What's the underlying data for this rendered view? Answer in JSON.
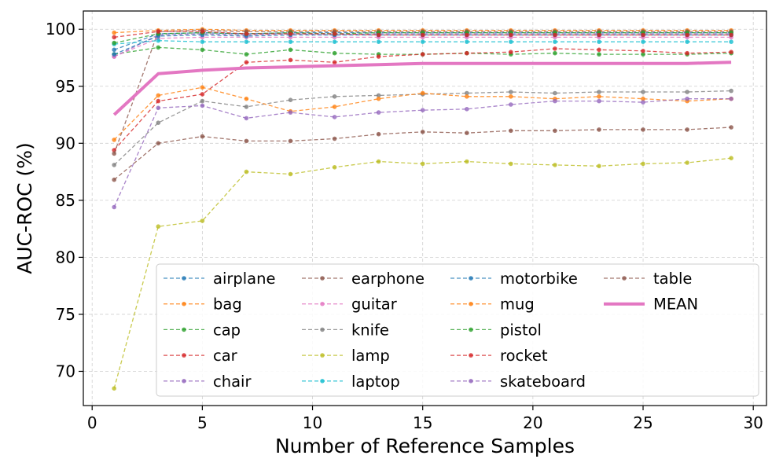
{
  "chart_data": {
    "type": "line",
    "title": "",
    "xlabel": "Number of Reference Samples",
    "ylabel": "AUC-ROC (%)",
    "xlim": [
      -0.4,
      30.6
    ],
    "ylim": [
      67,
      101.6
    ],
    "xticks": [
      0,
      5,
      10,
      15,
      20,
      25,
      30
    ],
    "yticks": [
      70,
      75,
      80,
      85,
      90,
      95,
      100
    ],
    "grid": true,
    "legend_position": "lower-right",
    "x": [
      1,
      3,
      5,
      7,
      9,
      11,
      13,
      15,
      17,
      19,
      21,
      23,
      25,
      27,
      29
    ],
    "series": [
      {
        "name": "airplane",
        "color": "#1f77b4",
        "style": "dashed",
        "values": [
          98.2,
          99.6,
          99.7,
          99.6,
          99.7,
          99.7,
          99.7,
          99.7,
          99.7,
          99.7,
          99.7,
          99.7,
          99.7,
          99.7,
          99.7
        ]
      },
      {
        "name": "bag",
        "color": "#ff7f0e",
        "style": "dashed",
        "values": [
          99.7,
          99.9,
          100.0,
          99.9,
          99.9,
          99.9,
          99.9,
          99.9,
          99.9,
          99.9,
          99.9,
          99.9,
          99.9,
          99.9,
          99.9
        ]
      },
      {
        "name": "cap",
        "color": "#2ca02c",
        "style": "dashed",
        "values": [
          97.8,
          98.4,
          98.2,
          97.8,
          98.2,
          97.9,
          97.8,
          97.8,
          97.9,
          97.8,
          97.9,
          97.8,
          97.8,
          97.8,
          97.9
        ]
      },
      {
        "name": "car",
        "color": "#d62728",
        "style": "dashed",
        "values": [
          89.4,
          93.7,
          94.3,
          97.1,
          97.3,
          97.1,
          97.6,
          97.8,
          97.9,
          98.0,
          98.3,
          98.2,
          98.1,
          97.9,
          98.0
        ]
      },
      {
        "name": "chair",
        "color": "#9467bd",
        "style": "dashed",
        "values": [
          97.6,
          99.5,
          99.6,
          99.5,
          99.6,
          99.5,
          99.6,
          99.6,
          99.6,
          99.6,
          99.6,
          99.6,
          99.6,
          99.6,
          99.6
        ]
      },
      {
        "name": "earphone",
        "color": "#8c564b",
        "style": "dashed",
        "values": [
          89.1,
          99.8,
          99.9,
          99.8,
          99.8,
          99.8,
          99.8,
          99.8,
          99.8,
          99.8,
          99.8,
          99.8,
          99.8,
          99.8,
          99.8
        ]
      },
      {
        "name": "guitar",
        "color": "#e377c2",
        "style": "dashed",
        "values": [
          97.6,
          99.2,
          99.3,
          99.3,
          99.3,
          99.3,
          99.3,
          99.3,
          99.3,
          99.3,
          99.3,
          99.3,
          99.3,
          99.3,
          99.3
        ]
      },
      {
        "name": "knife",
        "color": "#7f7f7f",
        "style": "dashed",
        "values": [
          88.1,
          91.8,
          93.7,
          93.2,
          93.8,
          94.1,
          94.2,
          94.3,
          94.4,
          94.5,
          94.4,
          94.5,
          94.5,
          94.5,
          94.6
        ]
      },
      {
        "name": "lamp",
        "color": "#bcbd22",
        "style": "dashed",
        "values": [
          68.5,
          82.7,
          83.2,
          87.5,
          87.3,
          87.9,
          88.4,
          88.2,
          88.4,
          88.2,
          88.1,
          88.0,
          88.2,
          88.3,
          88.7
        ]
      },
      {
        "name": "laptop",
        "color": "#17becf",
        "style": "dashed",
        "values": [
          98.7,
          99.0,
          98.9,
          98.9,
          98.9,
          98.9,
          98.9,
          98.9,
          98.9,
          98.9,
          98.9,
          98.9,
          98.9,
          98.9,
          98.9
        ]
      },
      {
        "name": "motorbike",
        "color": "#1f77b4",
        "style": "dashed",
        "values": [
          97.8,
          99.4,
          99.5,
          99.4,
          99.5,
          99.5,
          99.5,
          99.5,
          99.5,
          99.5,
          99.5,
          99.5,
          99.5,
          99.5,
          99.5
        ]
      },
      {
        "name": "mug",
        "color": "#ff7f0e",
        "style": "dashed",
        "values": [
          90.3,
          94.2,
          94.9,
          93.9,
          92.8,
          93.2,
          93.9,
          94.4,
          94.1,
          94.1,
          93.9,
          94.1,
          93.9,
          93.7,
          93.9
        ]
      },
      {
        "name": "pistol",
        "color": "#2ca02c",
        "style": "dashed",
        "values": [
          98.8,
          99.6,
          99.7,
          99.6,
          99.7,
          99.6,
          99.7,
          99.7,
          99.7,
          99.7,
          99.7,
          99.7,
          99.7,
          99.7,
          99.7
        ]
      },
      {
        "name": "rocket",
        "color": "#d62728",
        "style": "dashed",
        "values": [
          99.3,
          99.8,
          99.8,
          99.6,
          99.6,
          99.6,
          99.5,
          99.5,
          99.5,
          99.5,
          99.5,
          99.5,
          99.5,
          99.5,
          99.5
        ]
      },
      {
        "name": "skateboard",
        "color": "#9467bd",
        "style": "dashed",
        "values": [
          84.4,
          93.1,
          93.3,
          92.2,
          92.7,
          92.3,
          92.7,
          92.9,
          93.0,
          93.4,
          93.7,
          93.7,
          93.6,
          93.9,
          93.9
        ]
      },
      {
        "name": "table",
        "color": "#8c564b",
        "style": "dashed",
        "values": [
          86.8,
          90.0,
          90.6,
          90.2,
          90.2,
          90.4,
          90.8,
          91.0,
          90.9,
          91.1,
          91.1,
          91.2,
          91.2,
          91.2,
          91.4
        ]
      },
      {
        "name": "MEAN",
        "color": "#e377c2",
        "style": "solid",
        "values": [
          92.5,
          96.1,
          96.4,
          96.6,
          96.7,
          96.8,
          96.9,
          97.0,
          97.0,
          97.0,
          97.0,
          97.0,
          97.0,
          97.0,
          97.1
        ]
      }
    ]
  }
}
